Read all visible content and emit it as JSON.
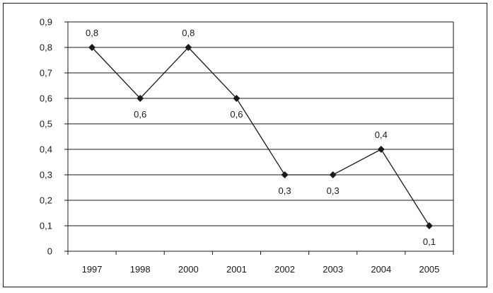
{
  "chart_data": {
    "type": "line",
    "title": "",
    "xlabel": "",
    "ylabel": "",
    "categories": [
      "1997",
      "1998",
      "2000",
      "2001",
      "2002",
      "2003",
      "2004",
      "2005"
    ],
    "series": [
      {
        "values": [
          0.8,
          0.6,
          0.8,
          0.6,
          0.3,
          0.3,
          0.4,
          0.1
        ]
      }
    ],
    "data_labels": [
      "0,8",
      "0,6",
      "0,8",
      "0,6",
      "0,3",
      "0,3",
      "0,4",
      "0,1"
    ],
    "data_label_positions": [
      "above",
      "below",
      "above",
      "below",
      "below",
      "below",
      "above",
      "below"
    ],
    "ylim": [
      0,
      0.9
    ],
    "yticks": [
      0,
      0.1,
      0.2,
      0.3,
      0.4,
      0.5,
      0.6,
      0.7,
      0.8,
      0.9
    ],
    "ytick_labels": [
      "0",
      "0,1",
      "0,2",
      "0,3",
      "0,4",
      "0,5",
      "0,6",
      "0,7",
      "0,8",
      "0,9"
    ],
    "grid": "horizontal",
    "legend": "none",
    "line_color": "#1a1a1a",
    "marker": "diamond"
  }
}
